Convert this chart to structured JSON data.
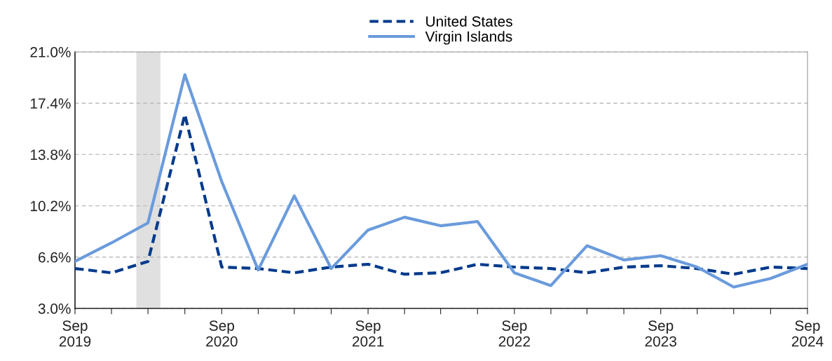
{
  "chart_data": {
    "type": "line",
    "x": [
      "2019-09",
      "2019-12",
      "2020-03",
      "2020-06",
      "2020-09",
      "2020-12",
      "2021-03",
      "2021-06",
      "2021-09",
      "2021-12",
      "2022-03",
      "2022-06",
      "2022-09",
      "2022-12",
      "2023-03",
      "2023-06",
      "2023-09",
      "2023-12",
      "2024-03",
      "2024-06",
      "2024-09"
    ],
    "series": [
      {
        "name": "United States",
        "color": "#003a8c",
        "line_style": "dashed",
        "values": [
          5.8,
          5.5,
          6.3,
          16.6,
          5.9,
          5.8,
          5.5,
          5.9,
          6.1,
          5.4,
          5.5,
          6.1,
          5.9,
          5.8,
          5.5,
          5.9,
          6.0,
          5.8,
          5.4,
          5.9,
          5.8
        ]
      },
      {
        "name": "Virgin Islands",
        "color": "#6a9bdc",
        "line_style": "solid",
        "values": [
          6.3,
          7.6,
          9.0,
          19.4,
          11.9,
          5.7,
          10.9,
          5.8,
          8.5,
          9.4,
          8.8,
          9.1,
          5.5,
          4.6,
          7.4,
          6.4,
          6.7,
          5.9,
          4.5,
          5.1,
          6.1
        ]
      }
    ],
    "ylim": [
      3.0,
      21.0
    ],
    "yticks": [
      {
        "value": 3.0,
        "label": "3.0%"
      },
      {
        "value": 6.6,
        "label": "6.6%"
      },
      {
        "value": 10.2,
        "label": "10.2%"
      },
      {
        "value": 13.8,
        "label": "13.8%"
      },
      {
        "value": 17.4,
        "label": "17.4%"
      },
      {
        "value": 21.0,
        "label": "21.0%"
      }
    ],
    "xlim": [
      "2019-09",
      "2024-09"
    ],
    "xticks": [
      {
        "value": "2019-09",
        "label": "Sep\n2019"
      },
      {
        "value": "2019-12",
        "label": null
      },
      {
        "value": "2020-03",
        "label": null
      },
      {
        "value": "2020-06",
        "label": null
      },
      {
        "value": "2020-09",
        "label": "Sep\n2020"
      },
      {
        "value": "2020-12",
        "label": null
      },
      {
        "value": "2021-03",
        "label": null
      },
      {
        "value": "2021-06",
        "label": null
      },
      {
        "value": "2021-09",
        "label": "Sep\n2021"
      },
      {
        "value": "2021-12",
        "label": null
      },
      {
        "value": "2022-03",
        "label": null
      },
      {
        "value": "2022-06",
        "label": null
      },
      {
        "value": "2022-09",
        "label": "Sep\n2022"
      },
      {
        "value": "2022-12",
        "label": null
      },
      {
        "value": "2023-03",
        "label": null
      },
      {
        "value": "2023-06",
        "label": null
      },
      {
        "value": "2023-09",
        "label": "Sep\n2023"
      },
      {
        "value": "2023-12",
        "label": null
      },
      {
        "value": "2024-03",
        "label": null
      },
      {
        "value": "2024-06",
        "label": null
      },
      {
        "value": "2024-09",
        "label": "Sep\n2024"
      }
    ],
    "bands": [
      {
        "axis": "x",
        "from": "2020-02",
        "to": "2020-04",
        "color": "#e0e0e0"
      }
    ],
    "grid": "y",
    "legend": "top",
    "marker": "none"
  }
}
